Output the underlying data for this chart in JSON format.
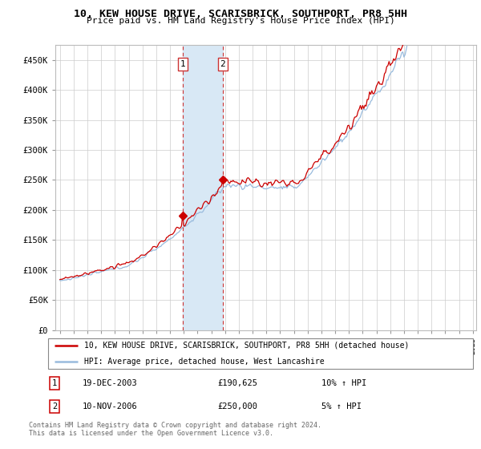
{
  "title": "10, KEW HOUSE DRIVE, SCARISBRICK, SOUTHPORT, PR8 5HH",
  "subtitle": "Price paid vs. HM Land Registry's House Price Index (HPI)",
  "ylabel_ticks": [
    "£0",
    "£50K",
    "£100K",
    "£150K",
    "£200K",
    "£250K",
    "£300K",
    "£350K",
    "£400K",
    "£450K"
  ],
  "ytick_vals": [
    0,
    50000,
    100000,
    150000,
    200000,
    250000,
    300000,
    350000,
    400000,
    450000
  ],
  "ylim": [
    0,
    475000
  ],
  "year_start": 1995,
  "year_end": 2025,
  "purchase1_price": 190625,
  "purchase2_price": 250000,
  "red_color": "#cc0000",
  "blue_color": "#99bbdd",
  "highlight_fill": "#d8e8f5",
  "dashed_color": "#cc3333",
  "legend_line1": "10, KEW HOUSE DRIVE, SCARISBRICK, SOUTHPORT, PR8 5HH (detached house)",
  "legend_line2": "HPI: Average price, detached house, West Lancashire",
  "footnote1": "Contains HM Land Registry data © Crown copyright and database right 2024.",
  "footnote2": "This data is licensed under the Open Government Licence v3.0.",
  "table_row1_num": "1",
  "table_row1_date": "19-DEC-2003",
  "table_row1_price": "£190,625",
  "table_row1_hpi": "10% ↑ HPI",
  "table_row2_num": "2",
  "table_row2_date": "10-NOV-2006",
  "table_row2_price": "£250,000",
  "table_row2_hpi": "5% ↑ HPI"
}
